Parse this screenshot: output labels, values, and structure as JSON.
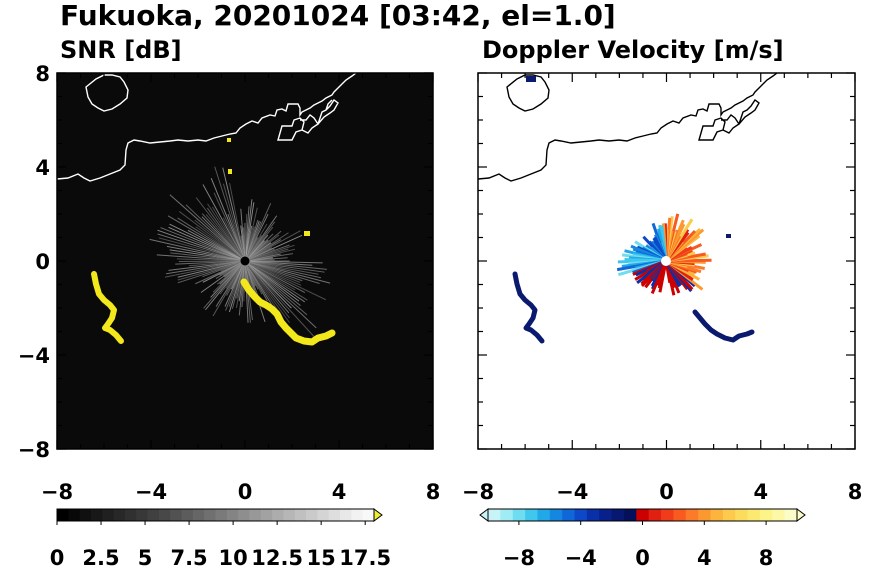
{
  "figure": {
    "title": "Fukuoka, 20201024 [03:42, el=1.0]"
  },
  "colors": {
    "snr_background": "#0a0a0a",
    "coast_on_dark": "#ffffff",
    "coast_on_light": "#000000",
    "snr_echo_high": "#f2e81c",
    "doppler_far_echo": "#0a1a6e"
  },
  "chart_data": [
    {
      "type": "heatmap",
      "title": "SNR [dB]",
      "xlim": [
        -8,
        8
      ],
      "ylim": [
        -8,
        8
      ],
      "x_ticks": [
        -8,
        -4,
        0,
        4,
        8
      ],
      "y_ticks": [
        -8,
        -4,
        0,
        4,
        8
      ],
      "x_tick_labels": [
        "−8",
        "−4",
        "0",
        "4",
        "8"
      ],
      "y_tick_labels": [
        "−8",
        "−4",
        "0",
        "4",
        "8"
      ],
      "colorbar": {
        "range": [
          0,
          18
        ],
        "labels": [
          "0",
          "2.5",
          "5",
          "7.5",
          "10",
          "12.5",
          "15",
          "17.5"
        ],
        "label_values": [
          0,
          2.5,
          5,
          7.5,
          10,
          12.5,
          15,
          17.5
        ],
        "extend": "max",
        "colors": [
          "#000000",
          "#080808",
          "#101010",
          "#181818",
          "#202020",
          "#282828",
          "#303030",
          "#383838",
          "#404040",
          "#484848",
          "#525252",
          "#5c5c5c",
          "#666666",
          "#707070",
          "#7a7a7a",
          "#848484",
          "#8e8e8e",
          "#989898",
          "#a2a2a2",
          "#acacac",
          "#b6b6b6",
          "#c0c0c0",
          "#cacaca",
          "#d4d4d4",
          "#dedede",
          "#e8e8e8",
          "#f2f2f2",
          "#f8f8f8",
          "#eeee30"
        ]
      }
    },
    {
      "type": "heatmap",
      "title": "Doppler Velocity [m/s]",
      "xlim": [
        -8,
        8
      ],
      "ylim": [
        -8,
        8
      ],
      "x_ticks": [
        -8,
        -4,
        0,
        4,
        8
      ],
      "y_ticks": [
        -8,
        -4,
        0,
        4,
        8
      ],
      "x_tick_labels": [
        "−8",
        "−4",
        "0",
        "4",
        "8"
      ],
      "y_tick_labels": [
        "−8",
        "−4",
        "0",
        "4",
        "8"
      ],
      "colorbar": {
        "range": [
          -10,
          10
        ],
        "labels": [
          "−8",
          "−4",
          "0",
          "4",
          "8"
        ],
        "label_values": [
          -8,
          -4,
          0,
          4,
          8
        ],
        "extend": "both",
        "colors": [
          "#c8f4f8",
          "#a0ecf4",
          "#70dcf0",
          "#40c8ec",
          "#20a8e8",
          "#1488e0",
          "#1068d8",
          "#0c48c8",
          "#0a30a8",
          "#08208c",
          "#061870",
          "#04105a",
          "#cc0000",
          "#e02010",
          "#f03c18",
          "#f85a20",
          "#fc7a28",
          "#fc9830",
          "#fcb43c",
          "#fcca4c",
          "#fcdc5c",
          "#fcea70",
          "#fcf488",
          "#fcf8a8",
          "#fcfcc8"
        ]
      }
    }
  ]
}
